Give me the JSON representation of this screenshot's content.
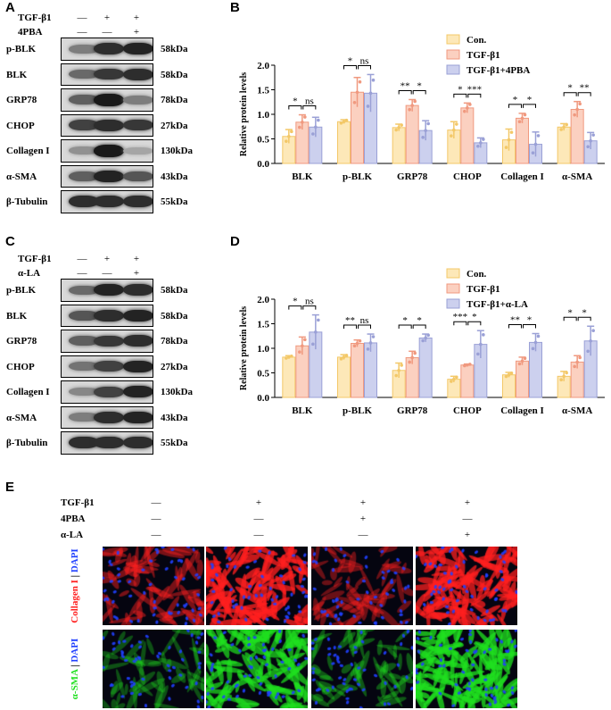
{
  "panel_labels": {
    "A": "A",
    "B": "B",
    "C": "C",
    "D": "D",
    "E": "E"
  },
  "blotA": {
    "treatments": [
      {
        "name": "TGF-β1",
        "signs": [
          "—",
          "+",
          "+"
        ]
      },
      {
        "name": "4PBA",
        "signs": [
          "—",
          "—",
          "+"
        ]
      }
    ],
    "rows": [
      {
        "name": "p-BLK",
        "kda": "58kDa",
        "intensity": [
          0.45,
          0.85,
          0.9
        ]
      },
      {
        "name": "BLK",
        "kda": "58kDa",
        "intensity": [
          0.55,
          0.8,
          0.85
        ]
      },
      {
        "name": "GRP78",
        "kda": "78kDa",
        "intensity": [
          0.6,
          0.95,
          0.45
        ]
      },
      {
        "name": "CHOP",
        "kda": "27kDa",
        "intensity": [
          0.75,
          0.85,
          0.8
        ]
      },
      {
        "name": "Collagen I",
        "kda": "130kDa",
        "intensity": [
          0.35,
          0.95,
          0.25
        ]
      },
      {
        "name": "α-SMA",
        "kda": "43kDa",
        "intensity": [
          0.6,
          0.9,
          0.65
        ]
      },
      {
        "name": "β-Tubulin",
        "kda": "55kDa",
        "intensity": [
          0.85,
          0.85,
          0.85
        ]
      }
    ]
  },
  "blotC": {
    "treatments": [
      {
        "name": "TGF-β1",
        "signs": [
          "—",
          "+",
          "+"
        ]
      },
      {
        "name": "α-LA",
        "signs": [
          "—",
          "—",
          "+"
        ]
      }
    ],
    "rows": [
      {
        "name": "p-BLK",
        "kda": "58kDa",
        "intensity": [
          0.55,
          0.9,
          0.85
        ]
      },
      {
        "name": "BLK",
        "kda": "58kDa",
        "intensity": [
          0.65,
          0.85,
          0.9
        ]
      },
      {
        "name": "GRP78",
        "kda": "78kDa",
        "intensity": [
          0.6,
          0.8,
          0.85
        ]
      },
      {
        "name": "CHOP",
        "kda": "27kDa",
        "intensity": [
          0.5,
          0.75,
          0.9
        ]
      },
      {
        "name": "Collagen I",
        "kda": "130kDa",
        "intensity": [
          0.4,
          0.75,
          0.9
        ]
      },
      {
        "name": "α-SMA",
        "kda": "43kDa",
        "intensity": [
          0.45,
          0.85,
          0.9
        ]
      },
      {
        "name": "β-Tubulin",
        "kda": "55kDa",
        "intensity": [
          0.85,
          0.85,
          0.85
        ]
      }
    ]
  },
  "chart_data": [
    {
      "id": "B",
      "type": "bar",
      "ylabel": "Relative protein levels",
      "ylim": [
        0,
        2.0
      ],
      "yticks": [
        "0.0",
        "0.5",
        "1.0",
        "1.5",
        "2.0"
      ],
      "categories": [
        "BLK",
        "p-BLK",
        "GRP78",
        "CHOP",
        "Collagen I",
        "α-SMA"
      ],
      "series": [
        {
          "name": "Con.",
          "color": "#fde8b8",
          "edge": "#f3c868",
          "values": [
            0.55,
            0.85,
            0.73,
            0.68,
            0.48,
            0.74
          ],
          "errors": [
            0.14,
            0.04,
            0.07,
            0.17,
            0.22,
            0.07
          ]
        },
        {
          "name": "TGF-β1",
          "color": "#fbd0c0",
          "edge": "#f0997f",
          "values": [
            0.84,
            1.45,
            1.18,
            1.13,
            0.92,
            1.1
          ],
          "errors": [
            0.15,
            0.3,
            0.12,
            0.1,
            0.1,
            0.16
          ]
        },
        {
          "name": "TGF-β1+4PBA",
          "color": "#ccd0ee",
          "edge": "#9aa0d6",
          "values": [
            0.74,
            1.43,
            0.67,
            0.42,
            0.39,
            0.46
          ],
          "errors": [
            0.2,
            0.38,
            0.2,
            0.1,
            0.25,
            0.17
          ]
        }
      ],
      "significance": [
        [
          "*",
          "ns"
        ],
        [
          "*",
          "ns"
        ],
        [
          "**",
          "*"
        ],
        [
          "*",
          "***"
        ],
        [
          "*",
          "*"
        ],
        [
          "*",
          "**"
        ]
      ],
      "legend_position": "top-right"
    },
    {
      "id": "D",
      "type": "bar",
      "ylabel": "Relative protein levels",
      "ylim": [
        0,
        2.0
      ],
      "yticks": [
        "0.0",
        "0.5",
        "1.0",
        "1.5",
        "2.0"
      ],
      "categories": [
        "BLK",
        "p-BLK",
        "GRP78",
        "CHOP",
        "Collagen I",
        "α-SMA"
      ],
      "series": [
        {
          "name": "Con.",
          "color": "#fde8b8",
          "edge": "#f3c868",
          "values": [
            0.82,
            0.82,
            0.55,
            0.37,
            0.46,
            0.43
          ],
          "errors": [
            0.03,
            0.05,
            0.15,
            0.06,
            0.05,
            0.1
          ]
        },
        {
          "name": "TGF-β1",
          "color": "#fbd0c0",
          "edge": "#f0997f",
          "values": [
            1.05,
            1.1,
            0.81,
            0.66,
            0.74,
            0.72
          ],
          "errors": [
            0.18,
            0.07,
            0.13,
            0.02,
            0.08,
            0.13
          ]
        },
        {
          "name": "TGF-β1+α-LA",
          "color": "#ccd0ee",
          "edge": "#9aa0d6",
          "values": [
            1.33,
            1.11,
            1.21,
            1.08,
            1.12,
            1.15
          ],
          "errors": [
            0.35,
            0.18,
            0.08,
            0.28,
            0.18,
            0.3
          ]
        }
      ],
      "significance": [
        [
          "*",
          "ns"
        ],
        [
          "**",
          "ns"
        ],
        [
          "*",
          "*"
        ],
        [
          "***",
          "*"
        ],
        [
          "**",
          "*"
        ],
        [
          "*",
          "*"
        ]
      ],
      "legend_position": "top-right"
    }
  ],
  "panelE": {
    "treatments": [
      {
        "name": "TGF-β1",
        "signs": [
          "—",
          "+",
          "+",
          "+"
        ]
      },
      {
        "name": "4PBA",
        "signs": [
          "—",
          "—",
          "+",
          "—"
        ]
      },
      {
        "name": "α-LA",
        "signs": [
          "—",
          "—",
          "—",
          "+"
        ]
      }
    ],
    "rows": [
      {
        "label_main": "Collagen I",
        "label_sep": " | ",
        "label_dapi": "DAPI",
        "main_color": "#ff2020",
        "dapi_color": "#2040ff",
        "intensity": [
          0.35,
          0.85,
          0.25,
          0.8
        ]
      },
      {
        "label_main": "α-SMA",
        "label_sep": " | ",
        "label_dapi": "DAPI",
        "main_color": "#20e020",
        "dapi_color": "#2040ff",
        "intensity": [
          0.15,
          0.75,
          0.2,
          0.85
        ]
      }
    ]
  }
}
